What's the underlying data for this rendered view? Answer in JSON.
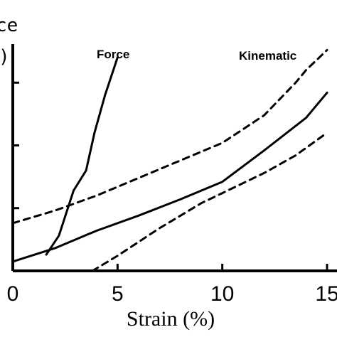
{
  "chart_data": {
    "type": "line",
    "title": "",
    "xlabel": "Strain (%)",
    "ylabel_fragments": [
      "ce",
      ")"
    ],
    "xlim": [
      0,
      15
    ],
    "ylim": [
      0,
      100
    ],
    "x_ticks": [
      0,
      5,
      10,
      15
    ],
    "x_tick_labels": [
      "0",
      "5",
      "10",
      "15"
    ],
    "y_ticks": [
      0,
      25,
      50,
      75,
      100
    ],
    "grid": false,
    "legend": "inline labels",
    "series": [
      {
        "name": "Force",
        "style": "solid",
        "points": [
          [
            1.6,
            6.5
          ],
          [
            2.2,
            14
          ],
          [
            2.9,
            32
          ],
          [
            3.5,
            40
          ],
          [
            3.9,
            55
          ],
          [
            4.4,
            70
          ],
          [
            5.0,
            85
          ]
        ]
      },
      {
        "name": "Kinematic",
        "style": "solid",
        "points": [
          [
            0,
            3.7
          ],
          [
            2,
            9
          ],
          [
            4,
            16
          ],
          [
            6,
            22
          ],
          [
            8,
            28.5
          ],
          [
            10,
            35.5
          ],
          [
            12,
            48
          ],
          [
            14,
            61
          ],
          [
            15,
            71
          ]
        ]
      },
      {
        "name": "",
        "style": "dashed",
        "points": [
          [
            0,
            19
          ],
          [
            2,
            24
          ],
          [
            4,
            30
          ],
          [
            6,
            37
          ],
          [
            8,
            44
          ],
          [
            10,
            51
          ],
          [
            12,
            62
          ],
          [
            13.5,
            75
          ],
          [
            14,
            80
          ],
          [
            15,
            88
          ]
        ]
      },
      {
        "name": "",
        "style": "dashed",
        "points": [
          [
            3.8,
            0
          ],
          [
            5,
            6
          ],
          [
            7,
            17
          ],
          [
            9,
            27
          ],
          [
            10,
            31
          ],
          [
            12,
            39
          ],
          [
            13.5,
            46
          ],
          [
            15,
            55
          ]
        ]
      }
    ]
  }
}
